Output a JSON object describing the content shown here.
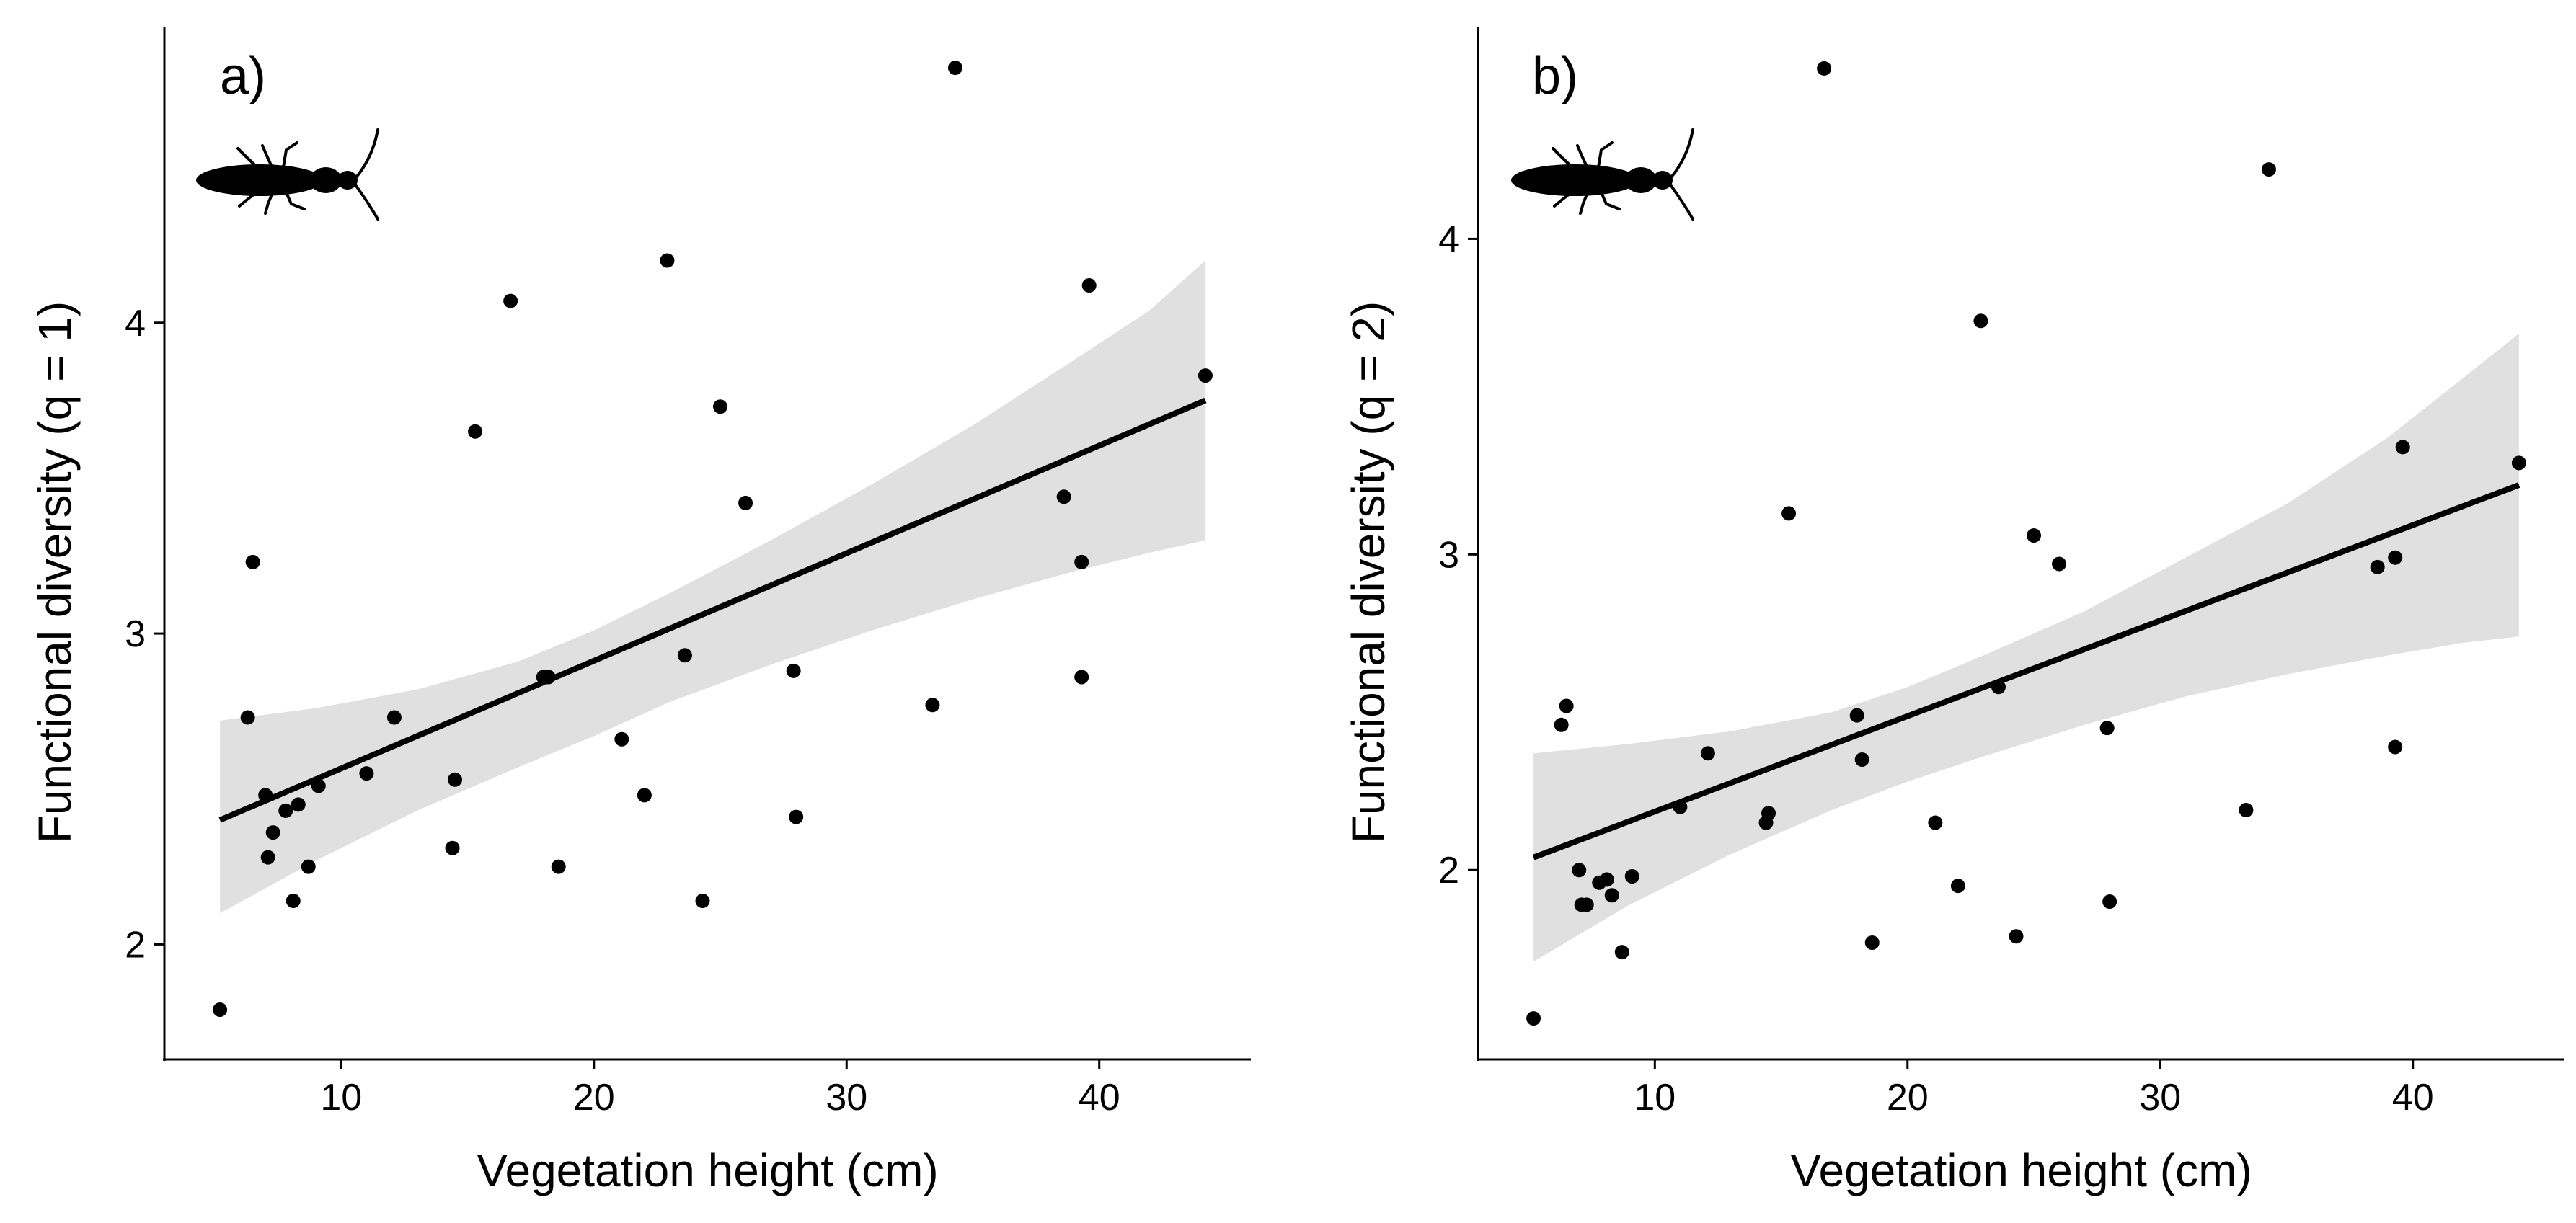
{
  "colors": {
    "background": "#ffffff",
    "ink": "#000000",
    "ribbon": "#e0e0e0"
  },
  "chart_data": [
    {
      "type": "scatter",
      "panel_label": "a)",
      "title": "",
      "xlabel": "Vegetation height (cm)",
      "ylabel": "Functional diversity (q = 1)",
      "xlim": [
        3,
        46
      ],
      "ylim": [
        1.63,
        4.95
      ],
      "xticks": [
        10,
        20,
        30,
        40
      ],
      "yticks": [
        2,
        3,
        4
      ],
      "grid": false,
      "icon": "beetle-silhouette",
      "fit": {
        "x": [
          5.2,
          44.2
        ],
        "y": [
          2.4,
          3.75
        ]
      },
      "ribbon": {
        "x": [
          5.2,
          9,
          13,
          17,
          20,
          23,
          27,
          31,
          35,
          39,
          42,
          44.2
        ],
        "lower": [
          2.1,
          2.27,
          2.43,
          2.57,
          2.67,
          2.78,
          2.9,
          3.01,
          3.11,
          3.2,
          3.26,
          3.3
        ],
        "upper": [
          2.72,
          2.76,
          2.82,
          2.91,
          3.01,
          3.13,
          3.3,
          3.48,
          3.67,
          3.88,
          4.04,
          4.2
        ]
      },
      "points": {
        "x": [
          5.2,
          6.3,
          6.5,
          7.0,
          7.1,
          7.3,
          7.8,
          8.1,
          8.3,
          8.7,
          9.1,
          11.0,
          12.1,
          14.4,
          14.5,
          15.3,
          16.7,
          18.0,
          18.2,
          18.6,
          21.1,
          22.0,
          22.9,
          23.6,
          24.3,
          25.0,
          26.0,
          27.9,
          28.0,
          33.4,
          34.3,
          38.6,
          39.3,
          39.3,
          39.6,
          44.2
        ],
        "y": [
          1.79,
          2.73,
          3.23,
          2.48,
          2.28,
          2.36,
          2.43,
          2.14,
          2.45,
          2.25,
          2.51,
          2.55,
          2.73,
          2.31,
          2.53,
          3.65,
          4.07,
          2.86,
          2.86,
          2.25,
          2.66,
          2.48,
          4.2,
          2.93,
          2.14,
          3.73,
          3.42,
          2.88,
          2.41,
          2.77,
          4.82,
          3.44,
          3.23,
          2.86,
          4.12,
          3.83
        ]
      }
    },
    {
      "type": "scatter",
      "panel_label": "b)",
      "title": "",
      "xlabel": "Vegetation height (cm)",
      "ylabel": "Functional diversity (q = 2)",
      "xlim": [
        3,
        46
      ],
      "ylim": [
        1.4,
        4.67
      ],
      "xticks": [
        10,
        20,
        30,
        40
      ],
      "yticks": [
        2,
        3,
        4
      ],
      "grid": false,
      "icon": "beetle-silhouette",
      "fit": {
        "x": [
          5.2,
          44.2
        ],
        "y": [
          2.04,
          3.22
        ]
      },
      "ribbon": {
        "x": [
          5.2,
          9,
          13,
          17,
          20,
          23,
          27,
          31,
          35,
          39,
          42,
          44.2
        ],
        "lower": [
          1.71,
          1.89,
          2.05,
          2.19,
          2.28,
          2.36,
          2.46,
          2.55,
          2.62,
          2.68,
          2.72,
          2.74
        ],
        "upper": [
          2.37,
          2.4,
          2.44,
          2.5,
          2.58,
          2.68,
          2.82,
          2.99,
          3.16,
          3.37,
          3.56,
          3.7
        ]
      },
      "points": {
        "x": [
          5.2,
          6.3,
          6.5,
          7.0,
          7.1,
          7.3,
          7.8,
          8.1,
          8.3,
          8.7,
          9.1,
          11.0,
          12.1,
          14.4,
          14.5,
          15.3,
          16.7,
          18.0,
          18.2,
          18.6,
          21.1,
          22.0,
          22.9,
          23.6,
          24.3,
          25.0,
          26.0,
          27.9,
          28.0,
          33.4,
          34.3,
          38.6,
          39.3,
          39.3,
          39.6,
          44.2
        ],
        "y": [
          1.53,
          2.46,
          2.52,
          2.0,
          1.89,
          1.89,
          1.96,
          1.97,
          1.92,
          1.74,
          1.98,
          2.2,
          2.37,
          2.15,
          2.18,
          3.13,
          4.54,
          2.49,
          2.35,
          1.77,
          2.15,
          1.95,
          3.74,
          2.58,
          1.79,
          3.06,
          2.97,
          2.45,
          1.9,
          2.19,
          4.22,
          2.96,
          2.99,
          2.39,
          3.34,
          3.29
        ]
      }
    }
  ]
}
